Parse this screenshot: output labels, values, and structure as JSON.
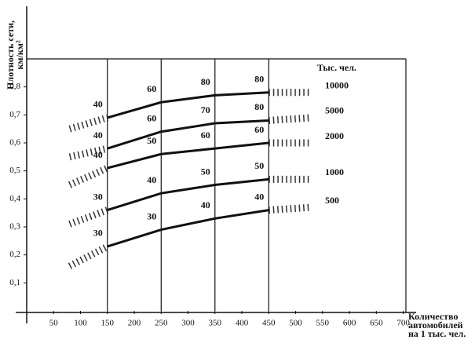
{
  "chart_data": {
    "type": "line",
    "y_label": [
      "Плотность сети,",
      "км/км²"
    ],
    "x_label": [
      "Количество",
      "автомобилей",
      "на 1 тыс. чел."
    ],
    "legend_title": "Тыс. чел.",
    "x": [
      80,
      150,
      250,
      350,
      450,
      530
    ],
    "xlim": [
      0,
      705
    ],
    "xticks": [
      50,
      100,
      150,
      200,
      250,
      300,
      350,
      400,
      450,
      500,
      550,
      600,
      650,
      700
    ],
    "ylim": [
      0,
      0.9
    ],
    "yticks": [
      {
        "value": 0.1,
        "label": "0,1"
      },
      {
        "value": 0.2,
        "label": "0,2"
      },
      {
        "value": 0.3,
        "label": "0,3"
      },
      {
        "value": 0.4,
        "label": "0,4"
      },
      {
        "value": 0.5,
        "label": "0,5"
      },
      {
        "value": 0.6,
        "label": "0,6"
      },
      {
        "value": 0.7,
        "label": "0,7"
      },
      {
        "value": 0.8,
        "label": "0,8"
      }
    ],
    "vlines": [
      150,
      250,
      350,
      450
    ],
    "label_x": [
      150,
      250,
      350,
      450
    ],
    "series": [
      {
        "name": "10000",
        "color": "#111111",
        "values": [
          0.65,
          0.69,
          0.745,
          0.77,
          0.78,
          0.78
        ],
        "point_labels": [
          40,
          60,
          80,
          80
        ]
      },
      {
        "name": "5000",
        "color": "#111111",
        "values": [
          0.55,
          0.58,
          0.64,
          0.67,
          0.68,
          0.69
        ],
        "point_labels": [
          40,
          60,
          70,
          80
        ]
      },
      {
        "name": "2000",
        "color": "#111111",
        "values": [
          0.45,
          0.51,
          0.56,
          0.58,
          0.6,
          0.6
        ],
        "point_labels": [
          40,
          50,
          60,
          60
        ]
      },
      {
        "name": "1000",
        "color": "#111111",
        "values": [
          0.31,
          0.36,
          0.42,
          0.45,
          0.47,
          0.47
        ],
        "point_labels": [
          30,
          40,
          50,
          50
        ]
      },
      {
        "name": "500",
        "color": "#111111",
        "values": [
          0.16,
          0.23,
          0.29,
          0.33,
          0.36,
          0.37
        ],
        "point_labels": [
          30,
          30,
          40,
          40
        ]
      }
    ]
  }
}
